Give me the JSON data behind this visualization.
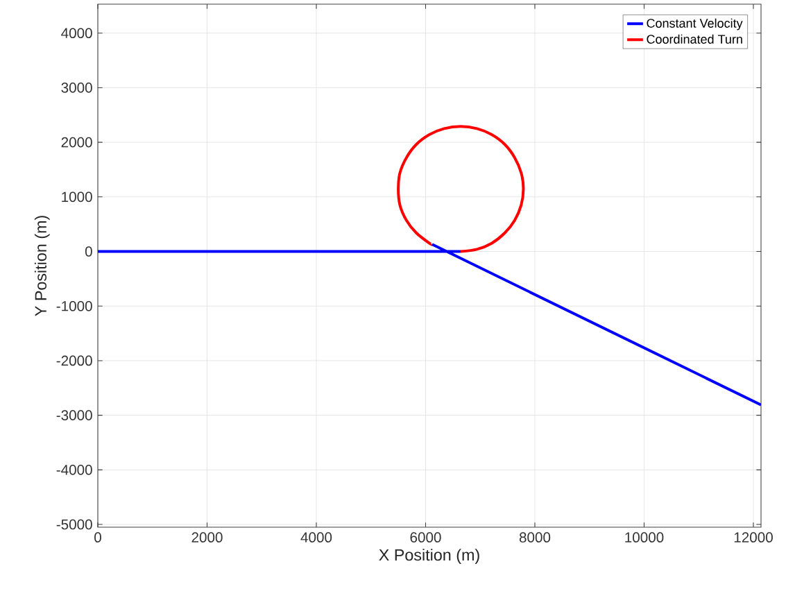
{
  "chart_data": {
    "type": "line",
    "xlabel": "X Position (m)",
    "ylabel": "Y Position (m)",
    "xlim": [
      0,
      12140
    ],
    "ylim": [
      -5050,
      4530
    ],
    "xticks": [
      0,
      2000,
      4000,
      6000,
      8000,
      10000,
      12000
    ],
    "yticks": [
      -5000,
      -4000,
      -3000,
      -2000,
      -1000,
      0,
      1000,
      2000,
      3000,
      4000
    ],
    "grid": true,
    "legend": "top right",
    "line_style": "solid",
    "marker": "none",
    "series": [
      {
        "name": "Constant Velocity",
        "color": "#0000ff",
        "x": [
          0,
          6640,
          null,
          6120,
          12140
        ],
        "values": [
          0,
          0,
          null,
          130,
          -2810
        ]
      },
      {
        "name": "Coordinated Turn",
        "color": "#ff0000",
        "x": [
          6640,
          6940,
          7210,
          7450,
          7630,
          7750,
          7790,
          7750,
          7630,
          7450,
          7210,
          6940,
          6640,
          6340,
          6070,
          5830,
          5650,
          5530,
          5500,
          5530,
          5650,
          5830,
          6070,
          6120
        ],
        "values": [
          0,
          40,
          150,
          340,
          570,
          850,
          1150,
          1440,
          1720,
          1960,
          2140,
          2250,
          2290,
          2250,
          2140,
          1960,
          1720,
          1440,
          1150,
          850,
          570,
          340,
          150,
          130
        ]
      }
    ]
  }
}
